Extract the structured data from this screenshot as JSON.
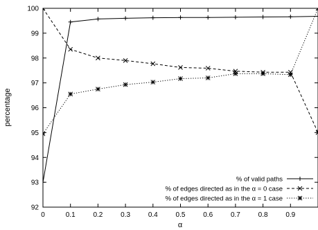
{
  "chart_data": {
    "type": "line",
    "xlabel": "α",
    "ylabel": "percentage",
    "xlim": [
      0,
      1
    ],
    "ylim": [
      92,
      100
    ],
    "x_ticks": [
      0,
      0.1,
      0.2,
      0.3,
      0.4,
      0.5,
      0.6,
      0.7,
      0.8,
      0.9
    ],
    "x_tick_labels": [
      "0",
      "0.1",
      "0.2",
      "0.3",
      "0.4",
      "0.5",
      "0.6",
      "0.7",
      "0.8",
      "0.9"
    ],
    "y_ticks": [
      92,
      93,
      94,
      95,
      96,
      97,
      98,
      99,
      100
    ],
    "y_tick_labels": [
      "92",
      "93",
      "94",
      "95",
      "96",
      "97",
      "98",
      "99",
      "100"
    ],
    "grid": false,
    "legend_position": "bottom-right",
    "series": [
      {
        "name": "% of valid paths",
        "line": "solid",
        "marker": "plus",
        "x": [
          0,
          0.1,
          0.2,
          0.3,
          0.4,
          0.5,
          0.6,
          0.7,
          0.8,
          0.9,
          1.0
        ],
        "y": [
          93.0,
          99.45,
          99.57,
          99.6,
          99.62,
          99.63,
          99.63,
          99.64,
          99.65,
          99.66,
          99.68
        ]
      },
      {
        "name": "% of edges directed as in the α = 0 case",
        "line": "dashed",
        "marker": "cross",
        "x": [
          0,
          0.1,
          0.2,
          0.3,
          0.4,
          0.5,
          0.6,
          0.7,
          0.8,
          0.9,
          1.0
        ],
        "y": [
          100.0,
          98.35,
          98.0,
          97.9,
          97.77,
          97.62,
          97.59,
          97.47,
          97.43,
          97.43,
          95.0
        ]
      },
      {
        "name": "% of edges directed as in the α = 1 case",
        "line": "dotted",
        "marker": "star",
        "x": [
          0,
          0.1,
          0.2,
          0.3,
          0.4,
          0.5,
          0.6,
          0.7,
          0.8,
          0.9,
          1.0
        ],
        "y": [
          94.95,
          96.55,
          96.75,
          96.93,
          97.03,
          97.17,
          97.2,
          97.37,
          97.37,
          97.33,
          100.0
        ]
      }
    ]
  }
}
